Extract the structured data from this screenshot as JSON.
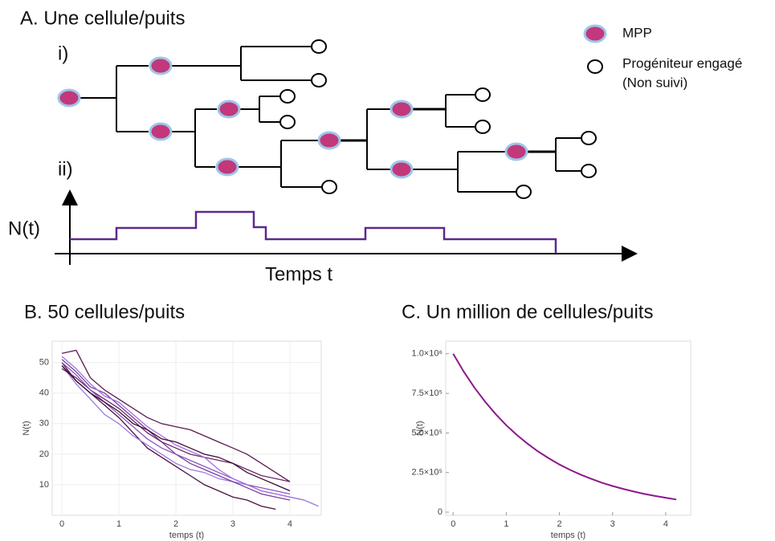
{
  "panel_a": {
    "title": "A. Une cellule/puits",
    "row_i": "i)",
    "row_ii": "ii)",
    "legend": [
      "MPP",
      "Progéniteur engagé",
      "(Non suivi)"
    ],
    "y_label": "N(t)",
    "x_label": "Temps t"
  },
  "chart_data": [
    {
      "type": "line",
      "title": "B. 50 cellules/puits",
      "x_label": "temps (t)",
      "y_label": "N(t)",
      "grid": true,
      "x": [
        0,
        0.25,
        0.5,
        0.75,
        1,
        1.25,
        1.5,
        1.75,
        2,
        2.25,
        2.5,
        2.75,
        3,
        3.25,
        3.5,
        3.75,
        4,
        4.25,
        4.5
      ],
      "series": [
        {
          "color": "#4a1040",
          "values": [
            50,
            44,
            40,
            36,
            32,
            27,
            22,
            19,
            16,
            13,
            10,
            8,
            6,
            5,
            3,
            2,
            null,
            null,
            null
          ]
        },
        {
          "color": "#5a1a50",
          "values": [
            53,
            54,
            45,
            41,
            38,
            35,
            32,
            30,
            29,
            28,
            26,
            24,
            22,
            20,
            17,
            14,
            11,
            null,
            null
          ]
        },
        {
          "color": "#9b7be0",
          "values": [
            49,
            43,
            38,
            33,
            30,
            26,
            23,
            20,
            17,
            15,
            14,
            12,
            11,
            10,
            8,
            7,
            6,
            5,
            3
          ]
        },
        {
          "color": "#7b3f9e",
          "values": [
            51,
            47,
            42,
            40,
            36,
            32,
            28,
            24,
            20,
            17,
            15,
            13,
            11,
            9,
            7,
            6,
            5,
            null,
            null
          ]
        },
        {
          "color": "#6a2a6a",
          "values": [
            48,
            45,
            41,
            38,
            35,
            31,
            27,
            24,
            22,
            20,
            19,
            18,
            17,
            15,
            13,
            12,
            11,
            null,
            null
          ]
        },
        {
          "color": "#8a5ac0",
          "values": [
            50,
            46,
            41,
            37,
            33,
            29,
            25,
            22,
            20,
            18,
            16,
            14,
            12,
            10,
            9,
            8,
            7,
            null,
            null
          ]
        },
        {
          "color": "#a070e0",
          "values": [
            52,
            48,
            43,
            39,
            37,
            33,
            29,
            26,
            23,
            21,
            19,
            15,
            12,
            10,
            8,
            7,
            6,
            5,
            null
          ]
        },
        {
          "color": "#3d0c33",
          "values": [
            49,
            44,
            40,
            37,
            34,
            30,
            28,
            25,
            24,
            22,
            20,
            19,
            17,
            14,
            12,
            10,
            8,
            null,
            null
          ]
        }
      ],
      "xlim": [
        -0.17,
        4.55
      ],
      "ylim": [
        0,
        57
      ],
      "xticks": [
        0,
        1,
        2,
        3,
        4
      ],
      "yticks": [
        10,
        20,
        30,
        40,
        50
      ]
    },
    {
      "type": "line",
      "title": "C. Un million de cellules/puits",
      "x_label": "temps (t)",
      "y_label": "N(t)",
      "grid": false,
      "x": [
        0,
        0.2,
        0.4,
        0.6,
        0.8,
        1,
        1.2,
        1.4,
        1.6,
        1.8,
        2,
        2.2,
        2.4,
        2.6,
        2.8,
        3,
        3.2,
        3.4,
        3.6,
        3.8,
        4,
        4.2
      ],
      "series": [
        {
          "color": "#8a1a8a",
          "values": [
            1000000,
            887000,
            787000,
            698000,
            619000,
            549000,
            487000,
            432000,
            383000,
            340000,
            301000,
            267000,
            237000,
            210000,
            186000,
            165000,
            147000,
            130000,
            115000,
            102000,
            91000,
            80000
          ]
        }
      ],
      "xlim": [
        -0.14,
        4.47
      ],
      "ylim": [
        -20000,
        1080000
      ],
      "xticks": [
        0,
        1,
        2,
        3,
        4
      ],
      "yticks": [
        0,
        {
          "value": 250000,
          "label": "2.5×10⁵"
        },
        {
          "value": 500000,
          "label": "5.0×10⁵"
        },
        {
          "value": 750000,
          "label": "7.5×10⁵"
        },
        {
          "value": 1000000,
          "label": "1.0×10⁶"
        }
      ]
    }
  ]
}
